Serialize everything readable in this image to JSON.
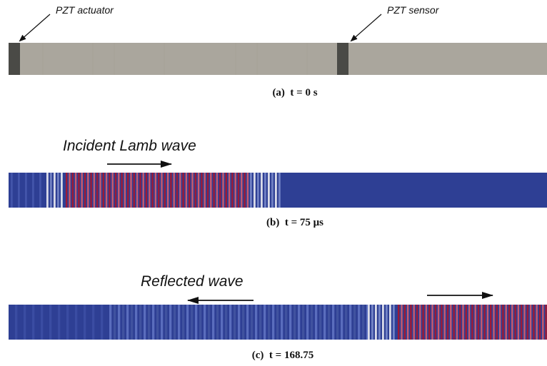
{
  "panel_a": {
    "actuator_label": "PZT actuator",
    "sensor_label": "PZT sensor",
    "caption": "(a)  t = 0 s",
    "plate_color": "#aaa69d",
    "pzt_color": "#4a4a46"
  },
  "panel_b": {
    "wave_label": "Incident Lamb wave",
    "caption": "(b)  t = 75 μs",
    "background_color": "#2e3f94",
    "wave_color": "#9e1a35"
  },
  "panel_c": {
    "wave_label": "Reflected wave",
    "caption": "(c)  t = 168.75",
    "background_color": "#2e3f94",
    "wave_color": "#9e1a35"
  }
}
